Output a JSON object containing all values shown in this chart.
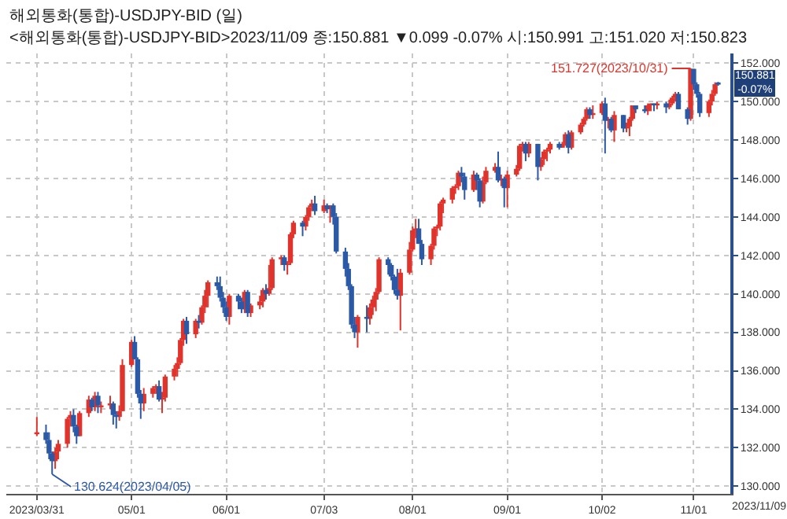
{
  "chart_data": {
    "type": "candlestick",
    "title": "해외통화(통합)-USDJPY-BID (일)",
    "subtitle": "<해외통화(통합)-USDJPY-BID>2023/11/09 종:150.881 ▼0.099 -0.07% 시:150.991 고:151.020 저:150.823",
    "series": [
      {
        "color": "#e0332b",
        "x": [
          "2023-03-31",
          "2023-04-06",
          "2023-04-07",
          "2023-04-10",
          "2023-04-11",
          "2023-04-14",
          "2023-04-17",
          "2023-04-19",
          "2023-04-21",
          "2023-04-24",
          "2023-04-27",
          "2023-04-28",
          "2023-05-01",
          "2023-05-05",
          "2023-05-08",
          "2023-05-09",
          "2023-05-11",
          "2023-05-12",
          "2023-05-15",
          "2023-05-16",
          "2023-05-17",
          "2023-05-18",
          "2023-05-22",
          "2023-05-24",
          "2023-05-25",
          "2023-05-26",
          "2023-06-02",
          "2023-06-07",
          "2023-06-09",
          "2023-06-12",
          "2023-06-13",
          "2023-06-15",
          "2023-06-16",
          "2023-06-19",
          "2023-06-21",
          "2023-06-22",
          "2023-06-23",
          "2023-06-27",
          "2023-06-28",
          "2023-06-29",
          "2023-07-03",
          "2023-07-05",
          "2023-07-14",
          "2023-07-18",
          "2023-07-19",
          "2023-07-20",
          "2023-07-21",
          "2023-07-28",
          "2023-07-31",
          "2023-08-01",
          "2023-08-02",
          "2023-08-07",
          "2023-08-08",
          "2023-08-09",
          "2023-08-10",
          "2023-08-11",
          "2023-08-14",
          "2023-08-15",
          "2023-08-16",
          "2023-08-21",
          "2023-08-24",
          "2023-08-25",
          "2023-08-28",
          "2023-08-30",
          "2023-09-01",
          "2023-09-04",
          "2023-09-05",
          "2023-09-06",
          "2023-09-08",
          "2023-09-12",
          "2023-09-13",
          "2023-09-14",
          "2023-09-15",
          "2023-09-19",
          "2023-09-20",
          "2023-09-22",
          "2023-09-25",
          "2023-09-26",
          "2023-09-27",
          "2023-09-29",
          "2023-10-02",
          "2023-10-04",
          "2023-10-06",
          "2023-10-10",
          "2023-10-11",
          "2023-10-12",
          "2023-10-17",
          "2023-10-18",
          "2023-10-20",
          "2023-10-24",
          "2023-10-25",
          "2023-10-26",
          "2023-10-31",
          "2023-11-06",
          "2023-11-07",
          "2023-11-08"
        ],
        "ohlc": [
          [
            132.7,
            133.6,
            132.6,
            132.8
          ],
          [
            131.3,
            132.0,
            130.9,
            131.8
          ],
          [
            131.8,
            132.4,
            131.4,
            132.2
          ],
          [
            132.2,
            133.6,
            132.0,
            133.5
          ],
          [
            133.5,
            133.9,
            133.1,
            133.7
          ],
          [
            132.6,
            133.9,
            132.6,
            133.8
          ],
          [
            133.8,
            134.7,
            133.6,
            134.5
          ],
          [
            134.1,
            134.9,
            133.9,
            134.7
          ],
          [
            134.1,
            134.4,
            133.8,
            134.2
          ],
          [
            134.2,
            134.7,
            134.0,
            134.3
          ],
          [
            133.6,
            134.2,
            133.4,
            133.9
          ],
          [
            133.9,
            136.6,
            133.9,
            136.3
          ],
          [
            136.3,
            137.6,
            136.2,
            137.5
          ],
          [
            134.3,
            135.1,
            133.9,
            134.8
          ],
          [
            134.8,
            135.2,
            134.6,
            135.1
          ],
          [
            135.1,
            135.3,
            134.8,
            135.2
          ],
          [
            134.5,
            134.9,
            133.8,
            134.6
          ],
          [
            134.6,
            135.8,
            134.4,
            135.7
          ],
          [
            135.7,
            136.3,
            135.5,
            136.1
          ],
          [
            136.1,
            136.7,
            135.7,
            136.4
          ],
          [
            136.4,
            137.7,
            136.3,
            137.6
          ],
          [
            137.6,
            138.7,
            137.3,
            138.6
          ],
          [
            137.9,
            138.7,
            137.7,
            138.6
          ],
          [
            138.5,
            139.4,
            138.4,
            139.3
          ],
          [
            139.3,
            140.2,
            139.0,
            139.9
          ],
          [
            139.9,
            140.7,
            139.3,
            140.6
          ],
          [
            138.8,
            140.0,
            138.4,
            139.9
          ],
          [
            139.2,
            140.2,
            139.0,
            140.1
          ],
          [
            139.0,
            139.5,
            138.8,
            139.4
          ],
          [
            139.4,
            139.9,
            139.2,
            139.6
          ],
          [
            139.6,
            140.3,
            139.3,
            140.2
          ],
          [
            140.0,
            141.5,
            139.9,
            140.3
          ],
          [
            140.3,
            141.9,
            140.2,
            141.8
          ],
          [
            141.8,
            142.0,
            141.5,
            141.9
          ],
          [
            141.5,
            141.7,
            141.0,
            141.6
          ],
          [
            141.6,
            143.2,
            141.5,
            143.1
          ],
          [
            143.1,
            143.8,
            142.9,
            143.7
          ],
          [
            143.5,
            144.1,
            143.3,
            144.0
          ],
          [
            144.0,
            144.6,
            143.8,
            144.5
          ],
          [
            144.5,
            144.9,
            144.3,
            144.7
          ],
          [
            144.3,
            144.9,
            144.2,
            144.6
          ],
          [
            144.4,
            144.6,
            143.7,
            144.6
          ],
          [
            138.0,
            138.9,
            137.2,
            138.8
          ],
          [
            138.7,
            139.5,
            138.4,
            139.3
          ],
          [
            139.3,
            139.9,
            138.9,
            139.7
          ],
          [
            139.7,
            140.3,
            139.1,
            140.1
          ],
          [
            140.1,
            141.9,
            140.0,
            141.8
          ],
          [
            139.9,
            141.3,
            138.1,
            141.1
          ],
          [
            141.1,
            142.7,
            141.0,
            142.3
          ],
          [
            142.3,
            143.5,
            142.2,
            143.3
          ],
          [
            143.3,
            143.9,
            142.9,
            143.4
          ],
          [
            141.8,
            142.6,
            141.5,
            142.5
          ],
          [
            142.5,
            143.5,
            142.3,
            143.4
          ],
          [
            143.4,
            143.6,
            143.0,
            143.5
          ],
          [
            143.5,
            144.8,
            143.3,
            144.7
          ],
          [
            144.7,
            145.0,
            144.2,
            144.9
          ],
          [
            144.9,
            145.6,
            144.7,
            145.5
          ],
          [
            145.5,
            145.7,
            145.2,
            145.6
          ],
          [
            145.6,
            146.4,
            145.4,
            146.3
          ],
          [
            145.4,
            146.4,
            145.3,
            146.2
          ],
          [
            144.8,
            146.1,
            144.7,
            145.8
          ],
          [
            145.8,
            146.6,
            145.7,
            146.4
          ],
          [
            146.4,
            146.8,
            146.3,
            146.6
          ],
          [
            145.9,
            146.2,
            145.6,
            146.0
          ],
          [
            145.5,
            146.4,
            144.5,
            146.2
          ],
          [
            146.2,
            146.7,
            146.1,
            146.5
          ],
          [
            146.5,
            147.8,
            146.4,
            147.7
          ],
          [
            147.7,
            147.9,
            147.4,
            147.8
          ],
          [
            147.3,
            147.9,
            147.1,
            147.8
          ],
          [
            146.6,
            147.1,
            146.4,
            147.0
          ],
          [
            147.0,
            147.5,
            146.7,
            147.4
          ],
          [
            147.4,
            147.6,
            146.9,
            147.5
          ],
          [
            147.5,
            147.9,
            147.3,
            147.8
          ],
          [
            147.6,
            147.9,
            147.6,
            147.8
          ],
          [
            147.8,
            148.4,
            147.7,
            148.3
          ],
          [
            147.6,
            148.5,
            147.5,
            148.4
          ],
          [
            148.4,
            148.9,
            148.3,
            148.8
          ],
          [
            148.8,
            149.2,
            148.7,
            149.1
          ],
          [
            149.1,
            149.7,
            149.0,
            149.6
          ],
          [
            149.3,
            149.8,
            149.1,
            149.4
          ],
          [
            149.4,
            150.0,
            149.3,
            149.9
          ],
          [
            149.0,
            149.2,
            148.6,
            149.1
          ],
          [
            148.5,
            149.5,
            147.9,
            149.3
          ],
          [
            148.6,
            148.9,
            148.4,
            148.7
          ],
          [
            148.7,
            149.2,
            148.2,
            149.1
          ],
          [
            149.1,
            149.8,
            149.0,
            149.8
          ],
          [
            149.5,
            149.9,
            149.3,
            149.8
          ],
          [
            149.8,
            149.9,
            149.5,
            149.9
          ],
          [
            149.8,
            150.0,
            149.6,
            149.9
          ],
          [
            149.7,
            150.1,
            149.6,
            149.9
          ],
          [
            149.9,
            150.3,
            149.8,
            150.2
          ],
          [
            150.2,
            150.5,
            150.0,
            150.4
          ],
          [
            149.1,
            151.727,
            149.0,
            151.7
          ],
          [
            149.4,
            150.1,
            149.2,
            150.0
          ],
          [
            150.0,
            150.6,
            149.8,
            150.4
          ],
          [
            150.4,
            151.0,
            150.3,
            150.9
          ]
        ]
      },
      {
        "color": "#2b59a6",
        "x": [
          "2023-04-03",
          "2023-04-04",
          "2023-04-05",
          "2023-04-12",
          "2023-04-13",
          "2023-04-18",
          "2023-04-20",
          "2023-04-25",
          "2023-04-26",
          "2023-05-02",
          "2023-05-03",
          "2023-05-04",
          "2023-05-10",
          "2023-05-19",
          "2023-05-23",
          "2023-05-29",
          "2023-05-30",
          "2023-05-31",
          "2023-06-01",
          "2023-06-05",
          "2023-06-06",
          "2023-06-08",
          "2023-06-14",
          "2023-06-20",
          "2023-06-26",
          "2023-06-30",
          "2023-07-04",
          "2023-07-06",
          "2023-07-07",
          "2023-07-10",
          "2023-07-11",
          "2023-07-12",
          "2023-07-13",
          "2023-07-17",
          "2023-07-24",
          "2023-07-25",
          "2023-07-26",
          "2023-07-27",
          "2023-08-03",
          "2023-08-04",
          "2023-08-17",
          "2023-08-18",
          "2023-08-22",
          "2023-08-23",
          "2023-08-29",
          "2023-08-31",
          "2023-09-07",
          "2023-09-11",
          "2023-09-18",
          "2023-09-21",
          "2023-09-28",
          "2023-10-03",
          "2023-10-05",
          "2023-10-09",
          "2023-10-13",
          "2023-10-16",
          "2023-10-19",
          "2023-10-23",
          "2023-10-27",
          "2023-10-30",
          "2023-11-01",
          "2023-11-02",
          "2023-11-03",
          "2023-11-09"
        ],
        "ohlc": [
          [
            132.8,
            133.2,
            132.2,
            132.4
          ],
          [
            132.4,
            132.8,
            131.4,
            131.7
          ],
          [
            131.7,
            131.8,
            130.624,
            131.3
          ],
          [
            133.7,
            134.0,
            132.8,
            133.1
          ],
          [
            133.1,
            133.2,
            132.2,
            132.6
          ],
          [
            134.5,
            134.6,
            133.9,
            134.1
          ],
          [
            134.7,
            134.9,
            133.8,
            134.2
          ],
          [
            134.3,
            134.4,
            133.2,
            133.7
          ],
          [
            133.7,
            133.9,
            133.0,
            133.6
          ],
          [
            137.5,
            137.8,
            136.6,
            136.6
          ],
          [
            136.6,
            136.7,
            134.6,
            134.8
          ],
          [
            134.8,
            135.0,
            133.5,
            134.3
          ],
          [
            135.2,
            135.5,
            134.4,
            134.5
          ],
          [
            138.6,
            138.8,
            137.4,
            137.9
          ],
          [
            138.6,
            138.9,
            138.2,
            138.5
          ],
          [
            140.6,
            140.9,
            140.2,
            140.4
          ],
          [
            140.4,
            140.9,
            139.6,
            139.8
          ],
          [
            139.8,
            140.1,
            139.0,
            139.3
          ],
          [
            139.3,
            139.6,
            138.6,
            138.8
          ],
          [
            139.9,
            140.0,
            139.2,
            139.6
          ],
          [
            139.6,
            139.8,
            139.0,
            139.2
          ],
          [
            140.1,
            140.2,
            138.8,
            139.0
          ],
          [
            140.2,
            140.5,
            139.7,
            140.0
          ],
          [
            141.9,
            142.0,
            141.2,
            141.5
          ],
          [
            143.7,
            143.8,
            143.0,
            143.5
          ],
          [
            144.7,
            145.1,
            144.1,
            144.3
          ],
          [
            144.6,
            144.7,
            144.2,
            144.4
          ],
          [
            144.6,
            144.7,
            143.6,
            144.0
          ],
          [
            144.0,
            144.2,
            142.1,
            142.2
          ],
          [
            142.2,
            142.4,
            140.9,
            141.3
          ],
          [
            141.3,
            141.6,
            140.2,
            140.4
          ],
          [
            140.4,
            140.5,
            138.2,
            138.4
          ],
          [
            138.4,
            138.8,
            137.7,
            138.0
          ],
          [
            138.8,
            139.4,
            138.0,
            138.7
          ],
          [
            141.8,
            141.9,
            141.0,
            141.5
          ],
          [
            141.5,
            141.6,
            140.7,
            140.9
          ],
          [
            140.9,
            141.0,
            140.0,
            140.2
          ],
          [
            140.2,
            141.3,
            139.7,
            139.9
          ],
          [
            143.4,
            143.9,
            142.6,
            142.6
          ],
          [
            142.6,
            142.8,
            141.5,
            141.8
          ],
          [
            146.3,
            146.6,
            145.8,
            146.1
          ],
          [
            146.1,
            146.3,
            144.9,
            145.4
          ],
          [
            146.2,
            146.3,
            145.4,
            145.9
          ],
          [
            145.9,
            146.0,
            144.5,
            144.8
          ],
          [
            146.6,
            147.4,
            145.8,
            145.9
          ],
          [
            146.0,
            146.1,
            144.5,
            145.5
          ],
          [
            147.8,
            147.9,
            146.9,
            147.3
          ],
          [
            147.8,
            147.8,
            145.9,
            146.6
          ],
          [
            147.8,
            147.9,
            147.5,
            147.6
          ],
          [
            148.3,
            148.5,
            147.3,
            147.6
          ],
          [
            149.6,
            149.7,
            149.1,
            149.3
          ],
          [
            149.9,
            150.2,
            147.3,
            149.0
          ],
          [
            149.1,
            149.2,
            148.4,
            148.5
          ],
          [
            149.3,
            149.3,
            148.4,
            148.6
          ],
          [
            149.8,
            149.8,
            149.4,
            149.6
          ],
          [
            149.6,
            149.8,
            149.4,
            149.5
          ],
          [
            149.9,
            149.9,
            149.5,
            149.8
          ],
          [
            149.9,
            150.0,
            149.4,
            149.7
          ],
          [
            150.4,
            150.5,
            149.6,
            149.6
          ],
          [
            149.6,
            149.7,
            148.8,
            149.1
          ],
          [
            151.7,
            151.7,
            150.6,
            150.9
          ],
          [
            150.9,
            151.0,
            150.2,
            150.4
          ],
          [
            150.4,
            150.5,
            149.2,
            149.4
          ],
          [
            150.991,
            151.02,
            150.823,
            150.881
          ]
        ]
      }
    ],
    "xlim": [
      "2023-03-21",
      "2023-11-13"
    ],
    "xticks": [
      {
        "value": "2023-03-31",
        "label": "2023/03/31"
      },
      {
        "value": "2023-05-01",
        "label": "05/01"
      },
      {
        "value": "2023-06-01",
        "label": "06/01"
      },
      {
        "value": "2023-07-03",
        "label": "07/03"
      },
      {
        "value": "2023-08-01",
        "label": "08/01"
      },
      {
        "value": "2023-09-01",
        "label": "09/01"
      },
      {
        "value": "2023-10-02",
        "label": "10/02"
      },
      {
        "value": "2023-11-01",
        "label": "11/01"
      }
    ],
    "ylim": [
      129.6,
      152.5
    ],
    "yticks": [
      {
        "value": 130,
        "label": "130.000"
      },
      {
        "value": 132,
        "label": "132.000"
      },
      {
        "value": 134,
        "label": "134.000"
      },
      {
        "value": 136,
        "label": "136.000"
      },
      {
        "value": 138,
        "label": "138.000"
      },
      {
        "value": 140,
        "label": "140.000"
      },
      {
        "value": 142,
        "label": "142.000"
      },
      {
        "value": 144,
        "label": "144.000"
      },
      {
        "value": 146,
        "label": "146.000"
      },
      {
        "value": 148,
        "label": "148.000"
      },
      {
        "value": 150,
        "label": "150.000"
      },
      {
        "value": 152,
        "label": "152.000"
      }
    ],
    "grid": true,
    "annotations": [
      {
        "text": "151.727(2023/10/31)",
        "x": "2023-10-31",
        "y": 151.727
      },
      {
        "text": "130.624(2023/04/05)",
        "x": "2023-04-05",
        "y": 130.624
      },
      "150.881\n-0.07%",
      "2023/11/09"
    ]
  }
}
